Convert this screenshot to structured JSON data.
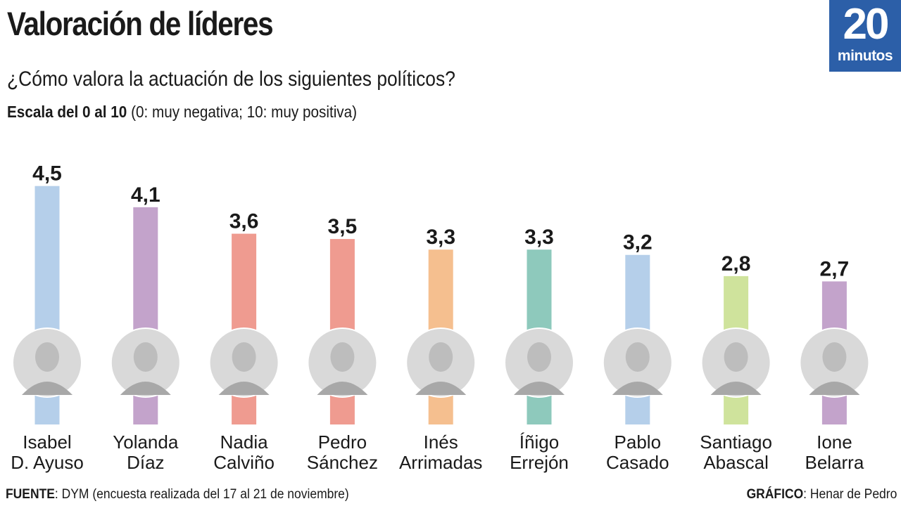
{
  "header": {
    "title": "Valoración de líderes",
    "subtitle": "¿Cómo valora la actuación de los siguientes políticos?",
    "scale_bold": "Escala del 0 al 10",
    "scale_rest": " (0: muy negativa; 10: muy positiva)"
  },
  "logo": {
    "number": "20",
    "word": "minutos"
  },
  "footer": {
    "source_label": "FUENTE",
    "source_text": ": DYM (encuesta realizada del 17 al 21 de noviembre)",
    "credit_label": "GRÁFICO",
    "credit_text": ": Henar de Pedro"
  },
  "chart_data": {
    "type": "bar",
    "categories": [
      "Isabel D. Ayuso",
      "Yolanda Díaz",
      "Nadia Calviño",
      "Pedro Sánchez",
      "Inés Arrimadas",
      "Íñigo Errejón",
      "Pablo Casado",
      "Santiago Abascal",
      "Ione Belarra"
    ],
    "category_lines": [
      [
        "Isabel",
        "D. Ayuso"
      ],
      [
        "Yolanda",
        "Díaz"
      ],
      [
        "Nadia",
        "Calviño"
      ],
      [
        "Pedro",
        "Sánchez"
      ],
      [
        "Inés",
        "Arrimadas"
      ],
      [
        "Íñigo",
        "Errejón"
      ],
      [
        "Pablo",
        "Casado"
      ],
      [
        "Santiago",
        "Abascal"
      ],
      [
        "Ione",
        "Belarra"
      ]
    ],
    "values": [
      4.5,
      4.1,
      3.6,
      3.5,
      3.3,
      3.3,
      3.2,
      2.8,
      2.7
    ],
    "value_labels": [
      "4,5",
      "4,1",
      "3,6",
      "3,5",
      "3,3",
      "3,3",
      "3,2",
      "2,8",
      "2,7"
    ],
    "colors": [
      "#b5cfea",
      "#c3a3cb",
      "#ef9b90",
      "#ef9b90",
      "#f5bf8f",
      "#8ec9bc",
      "#b5cfea",
      "#cfe39c",
      "#c3a3cb"
    ],
    "ylim": [
      0,
      10
    ],
    "xlabel": "",
    "ylabel": "",
    "grid": false,
    "legend": "none"
  }
}
